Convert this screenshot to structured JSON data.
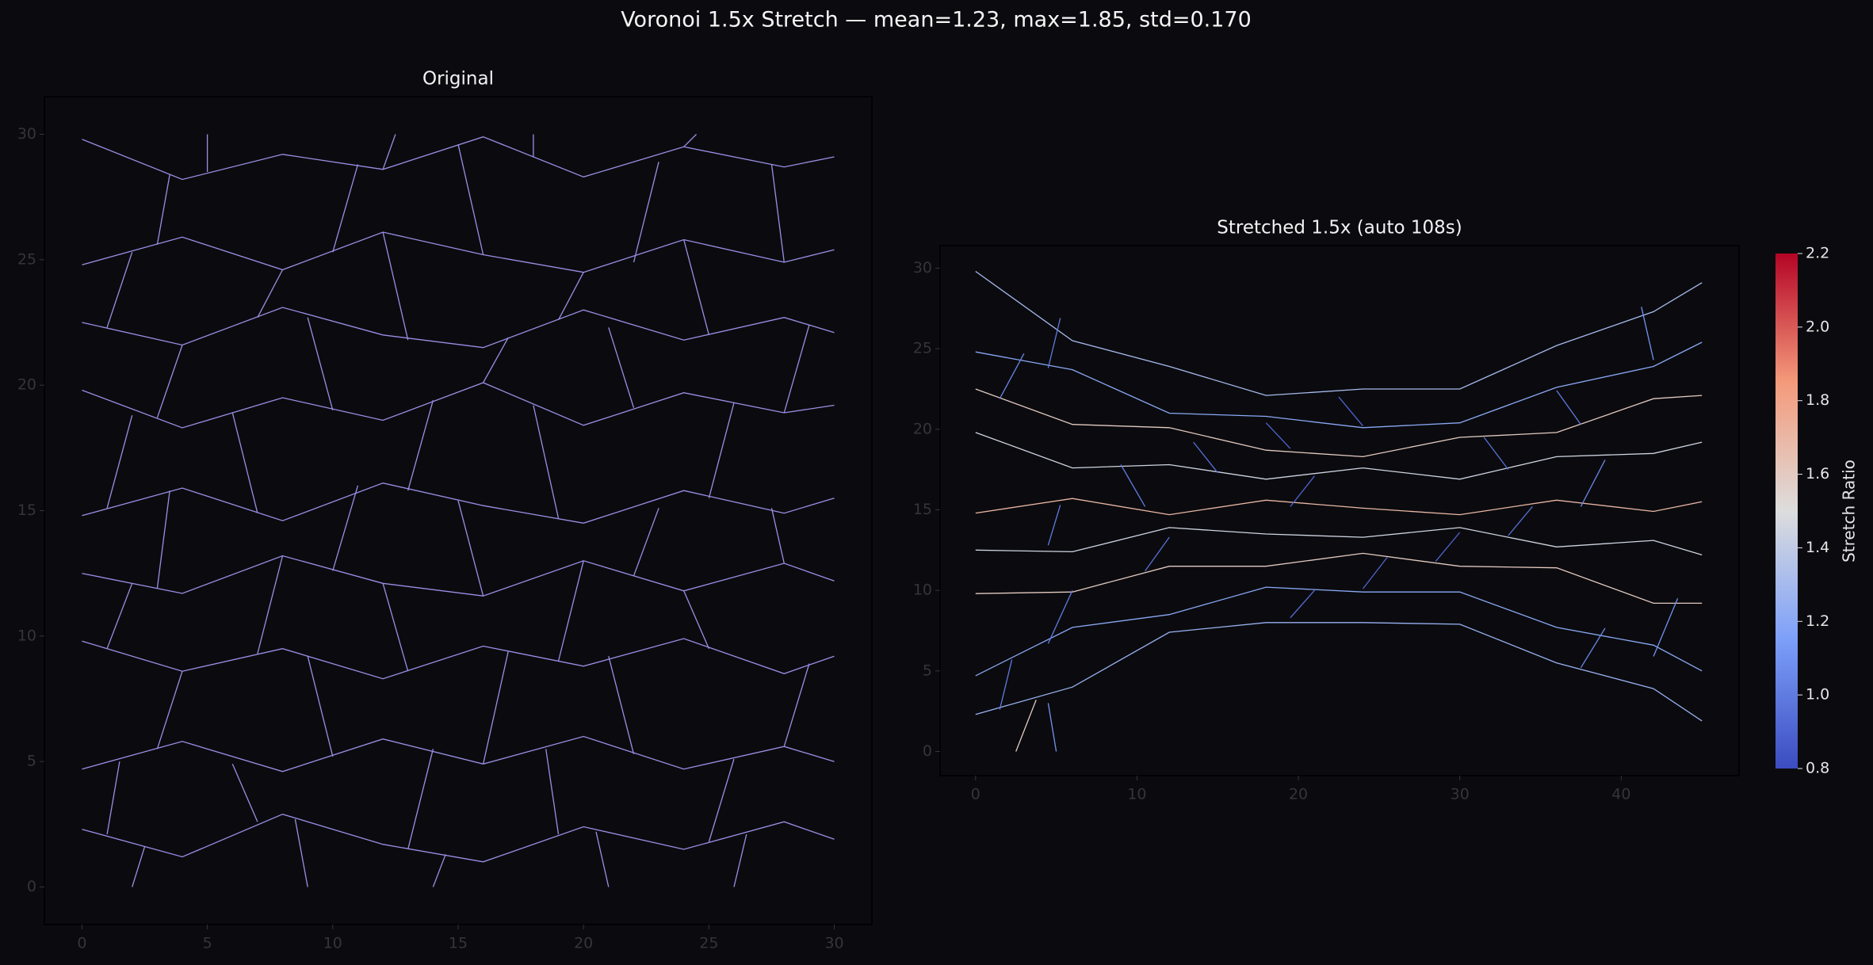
{
  "figure_title": "Voronoi 1.5x Stretch — mean=1.23, max=1.85, std=0.170",
  "chart_data": [
    {
      "type": "segments",
      "title": "Original",
      "color": "#9a8fe6",
      "xlim": [
        -1.5,
        31.5
      ],
      "ylim": [
        -1.5,
        31.5
      ],
      "xticks": [
        0,
        5,
        10,
        15,
        20,
        25,
        30
      ],
      "yticks": [
        0,
        5,
        10,
        15,
        20,
        25,
        30
      ],
      "edges": [
        {
          "x": [
            0,
            4,
            8,
            12,
            16,
            20,
            24,
            28,
            30
          ],
          "y": [
            2.3,
            1.2,
            2.9,
            1.7,
            1.0,
            2.4,
            1.5,
            2.6,
            1.9
          ]
        },
        {
          "x": [
            0,
            4,
            8,
            12,
            16,
            20,
            24,
            28,
            30
          ],
          "y": [
            4.7,
            5.8,
            4.6,
            5.9,
            4.9,
            6.0,
            4.7,
            5.6,
            5.0
          ]
        },
        {
          "x": [
            0,
            4,
            8,
            12,
            16,
            20,
            24,
            28,
            30
          ],
          "y": [
            9.8,
            8.6,
            9.5,
            8.3,
            9.6,
            8.8,
            9.9,
            8.5,
            9.2
          ]
        },
        {
          "x": [
            0,
            4,
            8,
            12,
            16,
            20,
            24,
            28,
            30
          ],
          "y": [
            12.5,
            11.7,
            13.2,
            12.1,
            11.6,
            13.0,
            11.8,
            12.9,
            12.2
          ]
        },
        {
          "x": [
            0,
            4,
            8,
            12,
            16,
            20,
            24,
            28,
            30
          ],
          "y": [
            14.8,
            15.9,
            14.6,
            16.1,
            15.2,
            14.5,
            15.8,
            14.9,
            15.5
          ]
        },
        {
          "x": [
            0,
            4,
            8,
            12,
            16,
            20,
            24,
            28,
            30
          ],
          "y": [
            19.8,
            18.3,
            19.5,
            18.6,
            20.1,
            18.4,
            19.7,
            18.9,
            19.2
          ]
        },
        {
          "x": [
            0,
            4,
            8,
            12,
            16,
            20,
            24,
            28,
            30
          ],
          "y": [
            22.5,
            21.6,
            23.1,
            22.0,
            21.5,
            23.0,
            21.8,
            22.7,
            22.1
          ]
        },
        {
          "x": [
            0,
            4,
            8,
            12,
            16,
            20,
            24,
            28,
            30
          ],
          "y": [
            24.8,
            25.9,
            24.6,
            26.1,
            25.2,
            24.5,
            25.8,
            24.9,
            25.4
          ]
        },
        {
          "x": [
            0,
            4,
            8,
            12,
            16,
            20,
            24,
            28,
            30
          ],
          "y": [
            29.8,
            28.2,
            29.2,
            28.6,
            29.9,
            28.3,
            29.5,
            28.7,
            29.1
          ]
        },
        {
          "x": [
            1,
            1.5
          ],
          "y": [
            2.1,
            5.0
          ]
        },
        {
          "x": [
            7,
            6
          ],
          "y": [
            2.6,
            4.9
          ]
        },
        {
          "x": [
            13,
            14
          ],
          "y": [
            1.5,
            5.5
          ]
        },
        {
          "x": [
            19,
            18.5
          ],
          "y": [
            2.1,
            5.5
          ]
        },
        {
          "x": [
            25,
            26
          ],
          "y": [
            1.8,
            5.1
          ]
        },
        {
          "x": [
            3,
            4
          ],
          "y": [
            5.5,
            8.6
          ]
        },
        {
          "x": [
            10,
            9
          ],
          "y": [
            5.2,
            9.2
          ]
        },
        {
          "x": [
            16,
            17
          ],
          "y": [
            4.9,
            9.4
          ]
        },
        {
          "x": [
            22,
            21
          ],
          "y": [
            5.3,
            9.2
          ]
        },
        {
          "x": [
            28,
            29
          ],
          "y": [
            5.6,
            8.9
          ]
        },
        {
          "x": [
            1,
            2
          ],
          "y": [
            9.5,
            12.1
          ]
        },
        {
          "x": [
            7,
            8
          ],
          "y": [
            9.3,
            13.2
          ]
        },
        {
          "x": [
            13,
            12
          ],
          "y": [
            8.6,
            12.1
          ]
        },
        {
          "x": [
            19,
            20
          ],
          "y": [
            9.0,
            13.0
          ]
        },
        {
          "x": [
            25,
            24
          ],
          "y": [
            9.5,
            11.8
          ]
        },
        {
          "x": [
            3,
            3.5
          ],
          "y": [
            11.9,
            15.8
          ]
        },
        {
          "x": [
            10,
            11
          ],
          "y": [
            12.6,
            16.0
          ]
        },
        {
          "x": [
            16,
            15
          ],
          "y": [
            11.6,
            15.4
          ]
        },
        {
          "x": [
            22,
            23
          ],
          "y": [
            12.4,
            15.1
          ]
        },
        {
          "x": [
            28,
            27.5
          ],
          "y": [
            12.9,
            15.1
          ]
        },
        {
          "x": [
            1,
            2
          ],
          "y": [
            15.1,
            18.8
          ]
        },
        {
          "x": [
            7,
            6
          ],
          "y": [
            14.9,
            18.9
          ]
        },
        {
          "x": [
            13,
            14
          ],
          "y": [
            15.8,
            19.4
          ]
        },
        {
          "x": [
            19,
            18
          ],
          "y": [
            14.7,
            19.2
          ]
        },
        {
          "x": [
            25,
            26
          ],
          "y": [
            15.5,
            19.3
          ]
        },
        {
          "x": [
            3,
            4
          ],
          "y": [
            18.7,
            21.6
          ]
        },
        {
          "x": [
            10,
            9
          ],
          "y": [
            19.0,
            22.7
          ]
        },
        {
          "x": [
            16,
            17
          ],
          "y": [
            20.1,
            21.9
          ]
        },
        {
          "x": [
            22,
            21
          ],
          "y": [
            19.1,
            22.3
          ]
        },
        {
          "x": [
            28,
            29
          ],
          "y": [
            18.9,
            22.4
          ]
        },
        {
          "x": [
            1,
            2
          ],
          "y": [
            22.3,
            25.3
          ]
        },
        {
          "x": [
            7,
            8
          ],
          "y": [
            22.7,
            24.6
          ]
        },
        {
          "x": [
            13,
            12
          ],
          "y": [
            21.8,
            26.1
          ]
        },
        {
          "x": [
            19,
            20
          ],
          "y": [
            22.6,
            24.5
          ]
        },
        {
          "x": [
            25,
            24
          ],
          "y": [
            22.0,
            25.8
          ]
        },
        {
          "x": [
            3,
            3.5
          ],
          "y": [
            25.6,
            28.4
          ]
        },
        {
          "x": [
            10,
            11
          ],
          "y": [
            25.3,
            28.8
          ]
        },
        {
          "x": [
            16,
            15
          ],
          "y": [
            25.2,
            29.6
          ]
        },
        {
          "x": [
            22,
            23
          ],
          "y": [
            24.9,
            28.9
          ]
        },
        {
          "x": [
            28,
            27.5
          ],
          "y": [
            24.9,
            28.8
          ]
        },
        {
          "x": [
            2.5,
            2
          ],
          "y": [
            1.6,
            0
          ]
        },
        {
          "x": [
            8.5,
            9
          ],
          "y": [
            2.7,
            0
          ]
        },
        {
          "x": [
            14.5,
            14
          ],
          "y": [
            1.3,
            0
          ]
        },
        {
          "x": [
            20.5,
            21
          ],
          "y": [
            2.2,
            0
          ]
        },
        {
          "x": [
            26.5,
            26
          ],
          "y": [
            2.1,
            0
          ]
        },
        {
          "x": [
            5,
            5
          ],
          "y": [
            28.5,
            30
          ]
        },
        {
          "x": [
            12,
            12.5
          ],
          "y": [
            28.6,
            30
          ]
        },
        {
          "x": [
            18,
            18
          ],
          "y": [
            29.1,
            30
          ]
        },
        {
          "x": [
            24,
            24.5
          ],
          "y": [
            29.5,
            30
          ]
        }
      ]
    },
    {
      "type": "segments",
      "title": "Stretched 1.5x (auto 108s)",
      "colormap": "coolwarm",
      "clim": [
        0.8,
        2.2
      ],
      "xlim": [
        -2.2,
        47.3
      ],
      "ylim": [
        -1.5,
        31.4
      ],
      "xticks": [
        0,
        10,
        20,
        30,
        40
      ],
      "yticks": [
        0,
        5,
        10,
        15,
        20,
        25,
        30
      ],
      "colorbar": {
        "label": "Stretch Ratio",
        "ticks": [
          0.8,
          {
            "value": 1,
            "label": "1.0"
          },
          1.2,
          1.4,
          1.6,
          1.8,
          {
            "value": 2,
            "label": "2.0"
          },
          2.2
        ]
      },
      "edges": [
        {
          "x": [
            0,
            6,
            12,
            18,
            24,
            30,
            36,
            42,
            45
          ],
          "y": [
            2.3,
            4.0,
            7.4,
            8.0,
            8.0,
            7.9,
            5.5,
            3.9,
            1.9
          ],
          "stretch": 1.25
        },
        {
          "x": [
            0,
            6,
            12,
            18,
            24,
            30,
            36,
            42,
            45
          ],
          "y": [
            4.7,
            7.7,
            8.5,
            10.2,
            9.9,
            9.9,
            7.7,
            6.6,
            5.0
          ],
          "stretch": 1.2
        },
        {
          "x": [
            0,
            6,
            12,
            18,
            24,
            30,
            36,
            42,
            45
          ],
          "y": [
            9.8,
            9.9,
            11.5,
            11.5,
            12.3,
            11.5,
            11.4,
            9.2,
            9.2
          ],
          "stretch": 1.6
        },
        {
          "x": [
            0,
            6,
            12,
            18,
            24,
            30,
            36,
            42,
            45
          ],
          "y": [
            12.5,
            12.4,
            13.9,
            13.5,
            13.3,
            13.9,
            12.7,
            13.1,
            12.2
          ],
          "stretch": 1.45
        },
        {
          "x": [
            0,
            6,
            12,
            18,
            24,
            30,
            36,
            42,
            45
          ],
          "y": [
            14.8,
            15.7,
            14.7,
            15.6,
            15.1,
            14.7,
            15.6,
            14.9,
            15.5
          ],
          "stretch": 1.7
        },
        {
          "x": [
            0,
            6,
            12,
            18,
            24,
            30,
            36,
            42,
            45
          ],
          "y": [
            19.8,
            17.6,
            17.8,
            16.9,
            17.6,
            16.9,
            18.3,
            18.5,
            19.2
          ],
          "stretch": 1.45
        },
        {
          "x": [
            0,
            6,
            12,
            18,
            24,
            30,
            36,
            42,
            45
          ],
          "y": [
            22.5,
            20.3,
            20.1,
            18.7,
            18.3,
            19.5,
            19.8,
            21.9,
            22.1
          ],
          "stretch": 1.6
        },
        {
          "x": [
            0,
            6,
            12,
            18,
            24,
            30,
            36,
            42,
            45
          ],
          "y": [
            24.8,
            23.7,
            21.0,
            20.8,
            20.1,
            20.4,
            22.6,
            23.9,
            25.4
          ],
          "stretch": 1.2
        },
        {
          "x": [
            0,
            6,
            12,
            18,
            24,
            30,
            36,
            42,
            45
          ],
          "y": [
            29.8,
            25.5,
            23.9,
            22.1,
            22.5,
            22.5,
            25.2,
            27.3,
            29.1
          ],
          "stretch": 1.3
        },
        {
          "x": [
            1.5,
            2.25
          ],
          "y": [
            2.6,
            5.7
          ],
          "stretch": 1.0
        },
        {
          "x": [
            19.5,
            21
          ],
          "y": [
            8.3,
            10.0
          ],
          "stretch": 0.95
        },
        {
          "x": [
            37.5,
            39
          ],
          "y": [
            5.2,
            7.65
          ],
          "stretch": 1.05
        },
        {
          "x": [
            4.5,
            6
          ],
          "y": [
            6.7,
            10.0
          ],
          "stretch": 1.0
        },
        {
          "x": [
            24,
            25.5
          ],
          "y": [
            10.1,
            12.05
          ],
          "stretch": 0.9
        },
        {
          "x": [
            42,
            43.5
          ],
          "y": [
            5.9,
            9.5
          ],
          "stretch": 1.1
        },
        {
          "x": [
            10.5,
            12
          ],
          "y": [
            11.2,
            13.3
          ],
          "stretch": 0.95
        },
        {
          "x": [
            28.5,
            30
          ],
          "y": [
            11.8,
            13.6
          ],
          "stretch": 0.9
        },
        {
          "x": [
            4.5,
            5.25
          ],
          "y": [
            12.8,
            15.3
          ],
          "stretch": 1.0
        },
        {
          "x": [
            33,
            34.5
          ],
          "y": [
            13.4,
            15.2
          ],
          "stretch": 0.95
        },
        {
          "x": [
            10.5,
            9
          ],
          "y": [
            15.2,
            17.8
          ],
          "stretch": 1.0
        },
        {
          "x": [
            19.5,
            21
          ],
          "y": [
            15.2,
            17.1
          ],
          "stretch": 0.9
        },
        {
          "x": [
            37.5,
            39
          ],
          "y": [
            15.2,
            18.1
          ],
          "stretch": 1.05
        },
        {
          "x": [
            15,
            13.5
          ],
          "y": [
            17.3,
            19.2
          ],
          "stretch": 0.95
        },
        {
          "x": [
            33,
            31.5
          ],
          "y": [
            17.5,
            19.5
          ],
          "stretch": 0.95
        },
        {
          "x": [
            1.5,
            3
          ],
          "y": [
            21.9,
            24.7
          ],
          "stretch": 1.05
        },
        {
          "x": [
            19.5,
            18
          ],
          "y": [
            18.8,
            20.4
          ],
          "stretch": 0.9
        },
        {
          "x": [
            37.5,
            36
          ],
          "y": [
            20.3,
            22.4
          ],
          "stretch": 1.0
        },
        {
          "x": [
            4.5,
            5.25
          ],
          "y": [
            23.8,
            26.9
          ],
          "stretch": 1.0
        },
        {
          "x": [
            24,
            22.5
          ],
          "y": [
            20.2,
            22.0
          ],
          "stretch": 0.9
        },
        {
          "x": [
            42,
            41.25
          ],
          "y": [
            24.3,
            27.6
          ],
          "stretch": 1.1
        },
        {
          "x": [
            3.75,
            2.5
          ],
          "y": [
            3.2,
            0
          ],
          "stretch": 1.6
        },
        {
          "x": [
            4.5,
            5
          ],
          "y": [
            3.0,
            0
          ],
          "stretch": 1.1
        }
      ]
    }
  ]
}
